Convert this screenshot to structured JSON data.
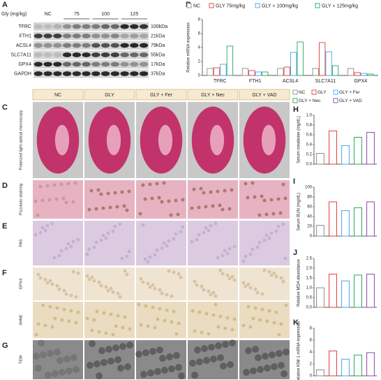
{
  "figure_a": {
    "panel": "A",
    "dose_label": "Gly (mg/kg)",
    "groups": [
      "NC",
      "75",
      "100",
      "125"
    ],
    "blots": [
      {
        "protein": "TFRC",
        "size": "100kDa"
      },
      {
        "protein": "FTH1",
        "size": "21kDa"
      },
      {
        "protein": "ACSL4",
        "size": "79kDa"
      },
      {
        "protein": "SLC7A11",
        "size": "55kDa"
      },
      {
        "protein": "GPX4",
        "size": "17kDa"
      },
      {
        "protein": "GAPDH",
        "size": "37kDa"
      }
    ]
  },
  "histology": {
    "columns": [
      "NC",
      "GLY",
      "GLY + Fer",
      "GLY + Nec",
      "GLY + VAD"
    ],
    "rows": [
      {
        "panel": "C",
        "label": "Polarized light optical microscopy"
      },
      {
        "panel": "D",
        "label": "Pizzolato staining"
      },
      {
        "panel": "E",
        "label": "PAS"
      },
      {
        "panel": "F",
        "label": "GPX4"
      },
      {
        "label": "4HNE"
      },
      {
        "panel": "G",
        "label": "TEM"
      }
    ]
  },
  "chart_data": [
    {
      "type": "bar",
      "panel": "B",
      "y_label": "Relative mRNA expression",
      "categories": [
        "TFRC",
        "FTH1",
        "ACSL4",
        "SLC7A11",
        "GPX4"
      ],
      "series": [
        {
          "name": "NC",
          "color": "#8c8c8c",
          "values": [
            1,
            1,
            1,
            1,
            1
          ]
        },
        {
          "name": "GLY 75mg/kg",
          "color": "#e53935",
          "values": [
            1.1,
            0.7,
            1.2,
            4.7,
            0.4
          ]
        },
        {
          "name": "GLY + 100mg/kg",
          "color": "#42a5f5",
          "values": [
            1.6,
            0.5,
            3.3,
            3.4,
            0.3
          ]
        },
        {
          "name": "GLY + 125mg/kg",
          "color": "#26a65b",
          "values": [
            4.2,
            0.5,
            4.8,
            1.4,
            0.2
          ]
        }
      ],
      "ylim": [
        0,
        8
      ],
      "yticks": [
        0,
        2,
        4,
        6,
        8
      ]
    },
    {
      "type": "bar",
      "panel": "H",
      "y_label": "Serum creatinine (mg/dL)",
      "categories": [
        "NC",
        "GLY",
        "GLY + Fer",
        "GLY + Nec",
        "GLY + VAD"
      ],
      "colors": [
        "#8c8c8c",
        "#e53935",
        "#42a5f5",
        "#26a65b",
        "#8e44ad"
      ],
      "values": [
        0.22,
        0.68,
        0.38,
        0.55,
        0.65
      ],
      "ylim": [
        0,
        1
      ],
      "yticks": [
        {
          "value": 0,
          "label": "0.0"
        },
        0.2,
        0.4,
        0.6,
        0.8,
        {
          "value": 1,
          "label": "1.0"
        }
      ]
    },
    {
      "type": "bar",
      "panel": "I",
      "y_label": "Serum BUN (mg/dL)",
      "categories": [
        "NC",
        "GLY",
        "GLY + Fer",
        "GLY + Nec",
        "GLY + VAD"
      ],
      "colors": [
        "#8c8c8c",
        "#e53935",
        "#42a5f5",
        "#26a65b",
        "#8e44ad"
      ],
      "values": [
        22,
        70,
        52,
        58,
        70
      ],
      "ylim": [
        0,
        100
      ],
      "yticks": [
        0,
        20,
        40,
        60,
        80,
        100
      ]
    },
    {
      "type": "bar",
      "panel": "J",
      "y_label": "Relative MDA abundance",
      "categories": [
        "NC",
        "GLY",
        "GLY + Fer",
        "GLY + Nec",
        "GLY + VAD"
      ],
      "colors": [
        "#8c8c8c",
        "#e53935",
        "#42a5f5",
        "#26a65b",
        "#8e44ad"
      ],
      "values": [
        1.0,
        1.7,
        1.35,
        1.65,
        1.7
      ],
      "ylim": [
        0,
        2.5
      ],
      "yticks": [
        {
          "value": 0,
          "label": "0.0"
        },
        0.5,
        {
          "value": 1,
          "label": "1.0"
        },
        1.5,
        {
          "value": 2,
          "label": "2.0"
        },
        2.5
      ]
    },
    {
      "type": "bar",
      "panel": "K",
      "y_label": "Relative KIM-1 mRNA expression",
      "categories": [
        "NC",
        "GLY",
        "GLY + Fer",
        "GLY + Nec",
        "GLY + VAD"
      ],
      "colors": [
        "#8c8c8c",
        "#e53935",
        "#42a5f5",
        "#26a65b",
        "#8e44ad"
      ],
      "values": [
        1,
        4.2,
        2.8,
        3.5,
        3.9
      ],
      "ylim": [
        0,
        8
      ],
      "yticks": [
        0,
        2,
        4,
        6,
        8
      ]
    }
  ]
}
